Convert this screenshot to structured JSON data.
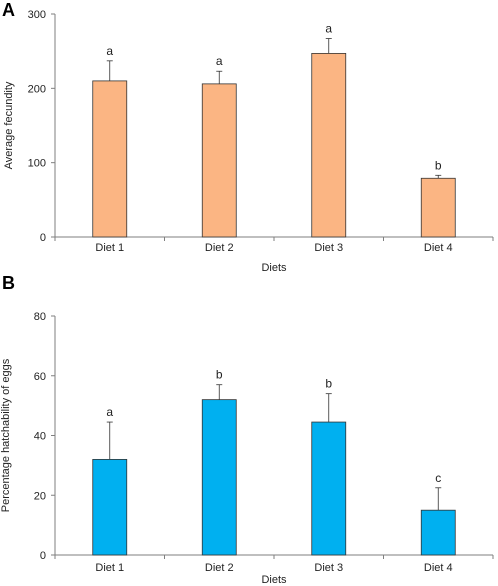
{
  "chart_data": [
    {
      "panel": "A",
      "type": "bar",
      "categories": [
        "Diet 1",
        "Diet 2",
        "Diet 3",
        "Diet 4"
      ],
      "values": [
        210,
        206,
        247,
        79
      ],
      "errors": [
        27,
        17,
        20,
        4
      ],
      "significance": [
        "a",
        "a",
        "a",
        "b"
      ],
      "xlabel": "Diets",
      "ylabel": "Average fecundity",
      "ylim": [
        0,
        300
      ],
      "yticks": [
        0,
        100,
        200,
        300
      ],
      "color": "#FBB583",
      "grid": false
    },
    {
      "panel": "B",
      "type": "bar",
      "categories": [
        "Diet 1",
        "Diet 2",
        "Diet 3",
        "Diet 4"
      ],
      "values": [
        32,
        52,
        44.5,
        15
      ],
      "errors": [
        12.5,
        5,
        9.5,
        7.5
      ],
      "significance": [
        "a",
        "b",
        "b",
        "c"
      ],
      "xlabel": "Diets",
      "ylabel": "Percentage hatchability of eggs",
      "ylim": [
        0,
        80
      ],
      "yticks": [
        0,
        20,
        40,
        60,
        80
      ],
      "color": "#00B0F0",
      "grid": false
    }
  ]
}
